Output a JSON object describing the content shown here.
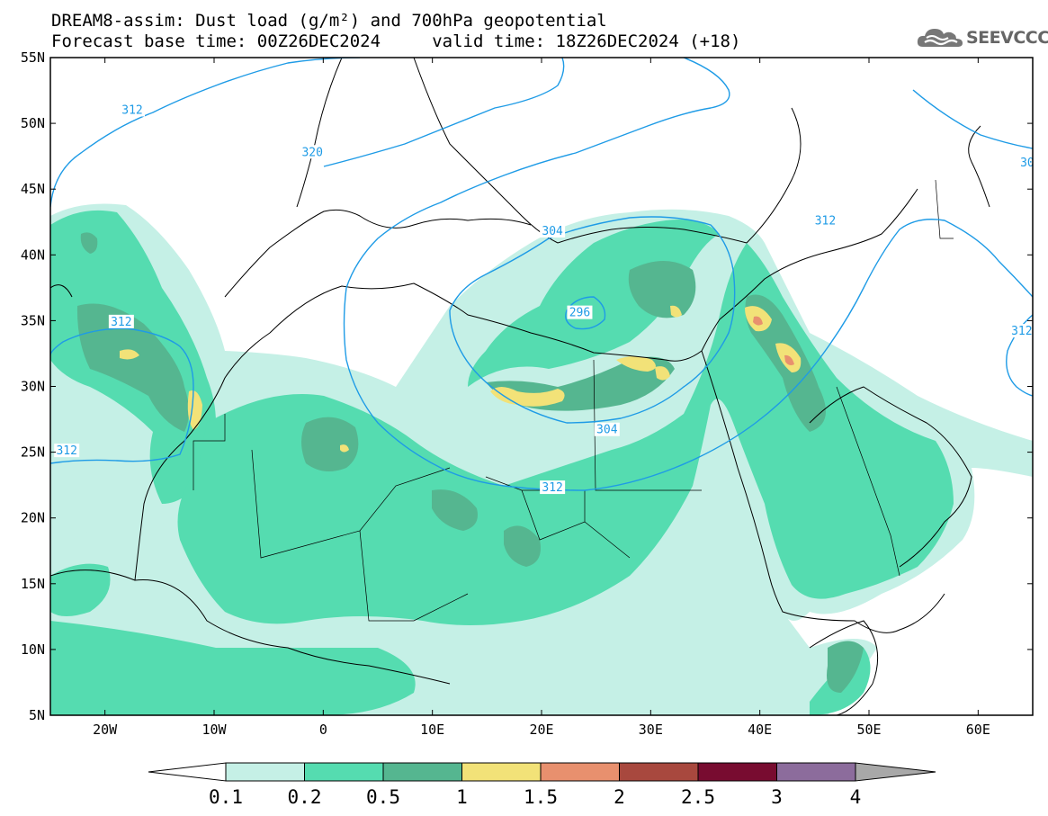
{
  "header": {
    "title_line1": "DREAM8-assim: Dust load (g/m²) and 700hPa geopotential",
    "title_line2": "Forecast base time: 00Z26DEC2024     valid time: 18Z26DEC2024 (+18)"
  },
  "logo": {
    "text": "SEEVCCC",
    "icon": "cloud-logo-icon"
  },
  "map": {
    "lon_ticks": [
      "20W",
      "10W",
      "0",
      "10E",
      "20E",
      "30E",
      "40E",
      "50E",
      "60E"
    ],
    "lat_ticks": [
      "55N",
      "50N",
      "45N",
      "40N",
      "35N",
      "30N",
      "25N",
      "20N",
      "15N",
      "10N",
      "5N"
    ],
    "contour_labels": [
      {
        "text": "312",
        "lon": -17.5,
        "lat": 51.0
      },
      {
        "text": "320",
        "lon": -1.0,
        "lat": 47.8
      },
      {
        "text": "304",
        "lon": 21.0,
        "lat": 41.8
      },
      {
        "text": "296",
        "lon": 23.5,
        "lat": 35.6
      },
      {
        "text": "304",
        "lon": 26.0,
        "lat": 26.7
      },
      {
        "text": "312",
        "lon": 21.0,
        "lat": 22.3
      },
      {
        "text": "312",
        "lon": -23.5,
        "lat": 25.1
      },
      {
        "text": "312",
        "lon": -18.5,
        "lat": 34.9
      },
      {
        "text": "312",
        "lon": 46.0,
        "lat": 42.6
      },
      {
        "text": "312",
        "lon": 64.0,
        "lat": 34.2
      },
      {
        "text": "30",
        "lon": 64.5,
        "lat": 47.0
      }
    ]
  },
  "colorbar": {
    "labels": [
      "0.1",
      "0.2",
      "0.5",
      "1",
      "1.5",
      "2",
      "2.5",
      "3",
      "4"
    ],
    "colors": [
      "#c5f0e6",
      "#55dcb0",
      "#55b690",
      "#f2e278",
      "#e8906e",
      "#a8483e",
      "#780c30",
      "#8c6c9c",
      "#a8a8a8"
    ]
  }
}
